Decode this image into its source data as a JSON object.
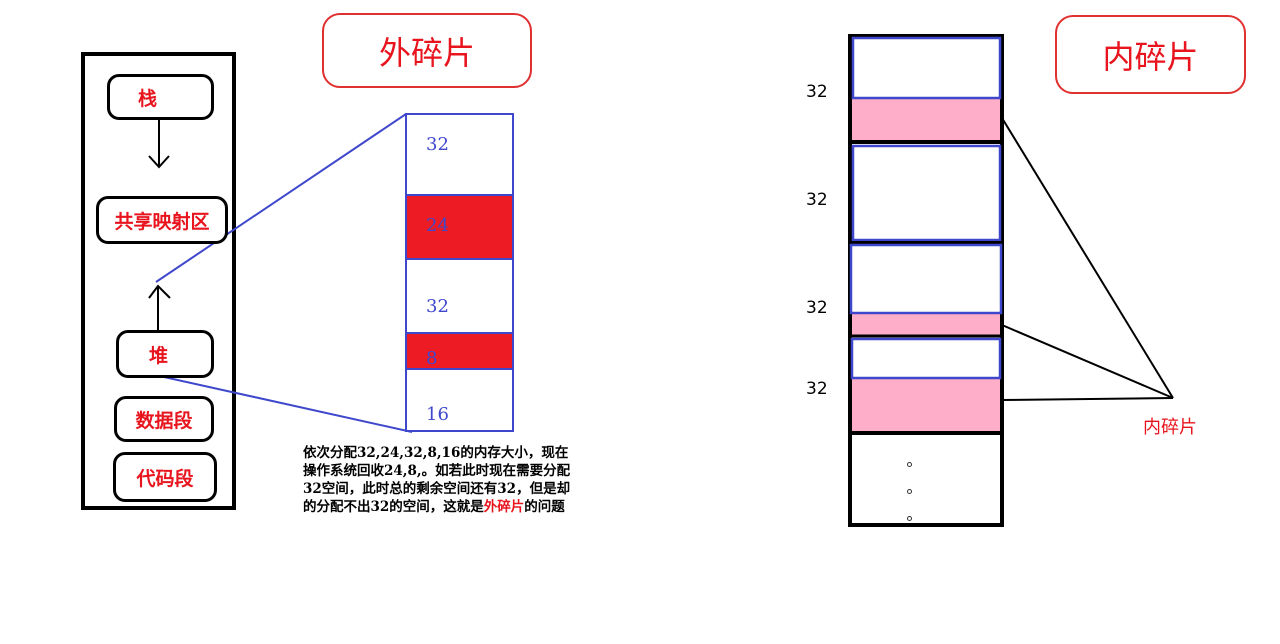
{
  "external": {
    "title": "外碎片",
    "segments": [
      "栈",
      "共享映射区",
      "堆",
      "数据段",
      "代码段"
    ],
    "blocks": [
      {
        "label": "32",
        "freed": false
      },
      {
        "label": "24",
        "freed": true
      },
      {
        "label": "32",
        "freed": false
      },
      {
        "label": "8",
        "freed": true
      },
      {
        "label": "16",
        "freed": false
      }
    ],
    "description_lines": [
      "依次分配32,24,32,8,16的内存大小，现在",
      "操作系统回收24,8,。如若此时现在需要分配",
      "32空间，此时总的剩余空间还有32，但是却"
    ],
    "description_last_before": "的分配不出32的空间，这就是",
    "description_highlight": "外碎片",
    "description_last_after": "的问题"
  },
  "internal": {
    "title": "内碎片",
    "block_labels": [
      "32",
      "32",
      "32",
      "32"
    ],
    "pointer_label": "内碎片"
  },
  "colors": {
    "freed_red": "#ed1c24",
    "waste_pink": "#ffaec9",
    "blue": "#3f48cc",
    "title_red": "#e8141e"
  }
}
